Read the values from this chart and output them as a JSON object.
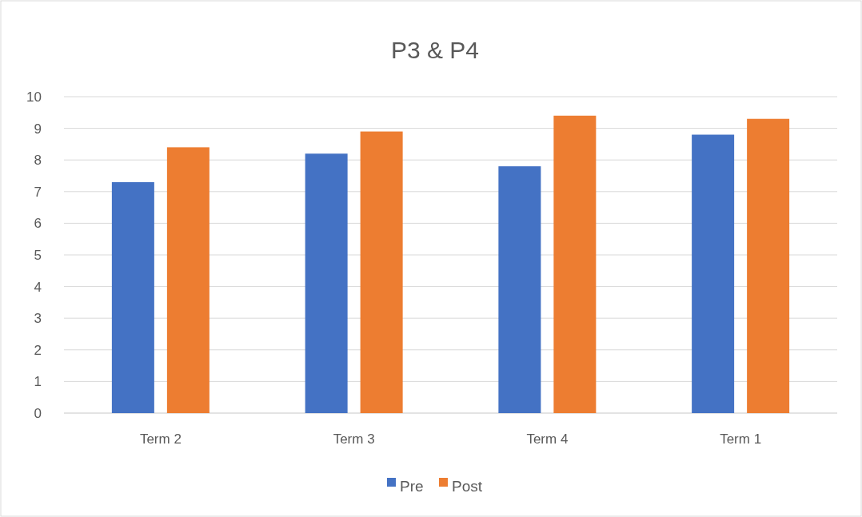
{
  "chart_data": {
    "type": "bar",
    "title": "P3 & P4",
    "categories": [
      "Term 2",
      "Term 3",
      "Term 4",
      "Term 1"
    ],
    "series": [
      {
        "name": "Pre",
        "color": "#4472c4",
        "values": [
          7.3,
          8.2,
          7.8,
          8.8
        ]
      },
      {
        "name": "Post",
        "color": "#ed7d31",
        "values": [
          8.4,
          8.9,
          9.4,
          9.3
        ]
      }
    ],
    "ylim": [
      0,
      10
    ],
    "yticks": [
      0,
      1,
      2,
      3,
      4,
      5,
      6,
      7,
      8,
      9,
      10
    ],
    "grid": "y",
    "legend": "bottom"
  }
}
